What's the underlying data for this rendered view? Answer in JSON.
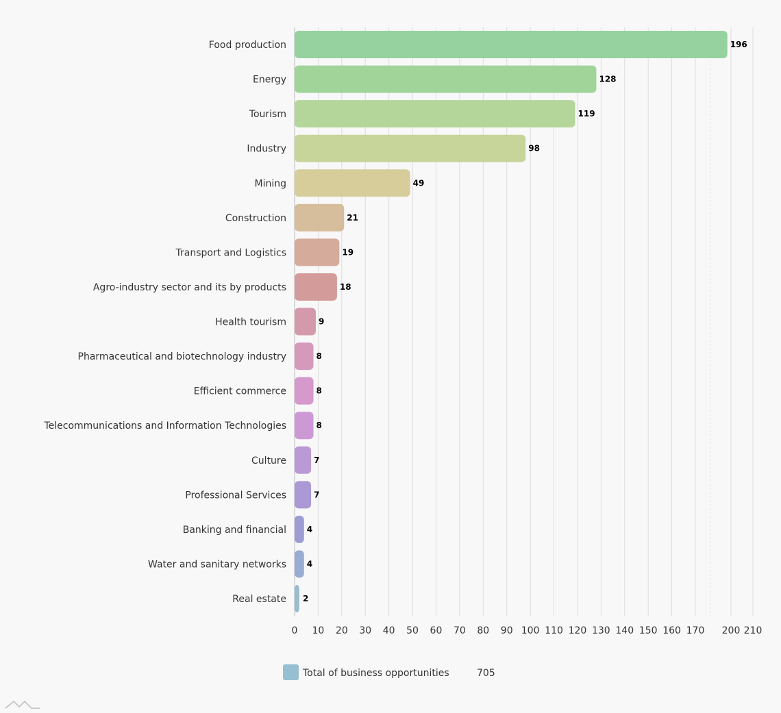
{
  "chart_data": {
    "type": "bar",
    "orientation": "horizontal",
    "categories": [
      "Food production",
      "Energy",
      "Tourism",
      "Industry",
      "Mining",
      "Construction",
      "Transport and Logistics",
      "Agro-industry sector and its by products",
      "Health tourism",
      "Pharmaceutical and biotechnology industry",
      "Efficient commerce",
      "Telecommunications and Information Technologies",
      "Culture",
      "Professional Services",
      "Banking and financial",
      "Water and sanitary networks",
      "Real estate"
    ],
    "values": [
      196,
      128,
      119,
      98,
      49,
      21,
      19,
      18,
      9,
      8,
      8,
      8,
      7,
      7,
      4,
      4,
      2
    ],
    "colors": [
      "#8fd09a",
      "#9bd294",
      "#b0d495",
      "#c4d396",
      "#d4ca96",
      "#d4b996",
      "#d3a796",
      "#d29696",
      "#d394a8",
      "#d393b8",
      "#d393c8",
      "#c994d3",
      "#b794d2",
      "#a594d2",
      "#9898d2",
      "#93a8d0",
      "#93b8cf"
    ],
    "xticks": [
      0,
      10,
      20,
      30,
      40,
      50,
      60,
      70,
      80,
      90,
      100,
      110,
      120,
      130,
      140,
      150,
      160,
      170,
      200,
      210
    ],
    "xlim": [
      0,
      210
    ],
    "axis_break": [
      175,
      195
    ],
    "grid": true,
    "legend": {
      "label": "Total of business opportunities",
      "value": "705",
      "color": "#96bfd1",
      "placement": "bottom"
    }
  }
}
